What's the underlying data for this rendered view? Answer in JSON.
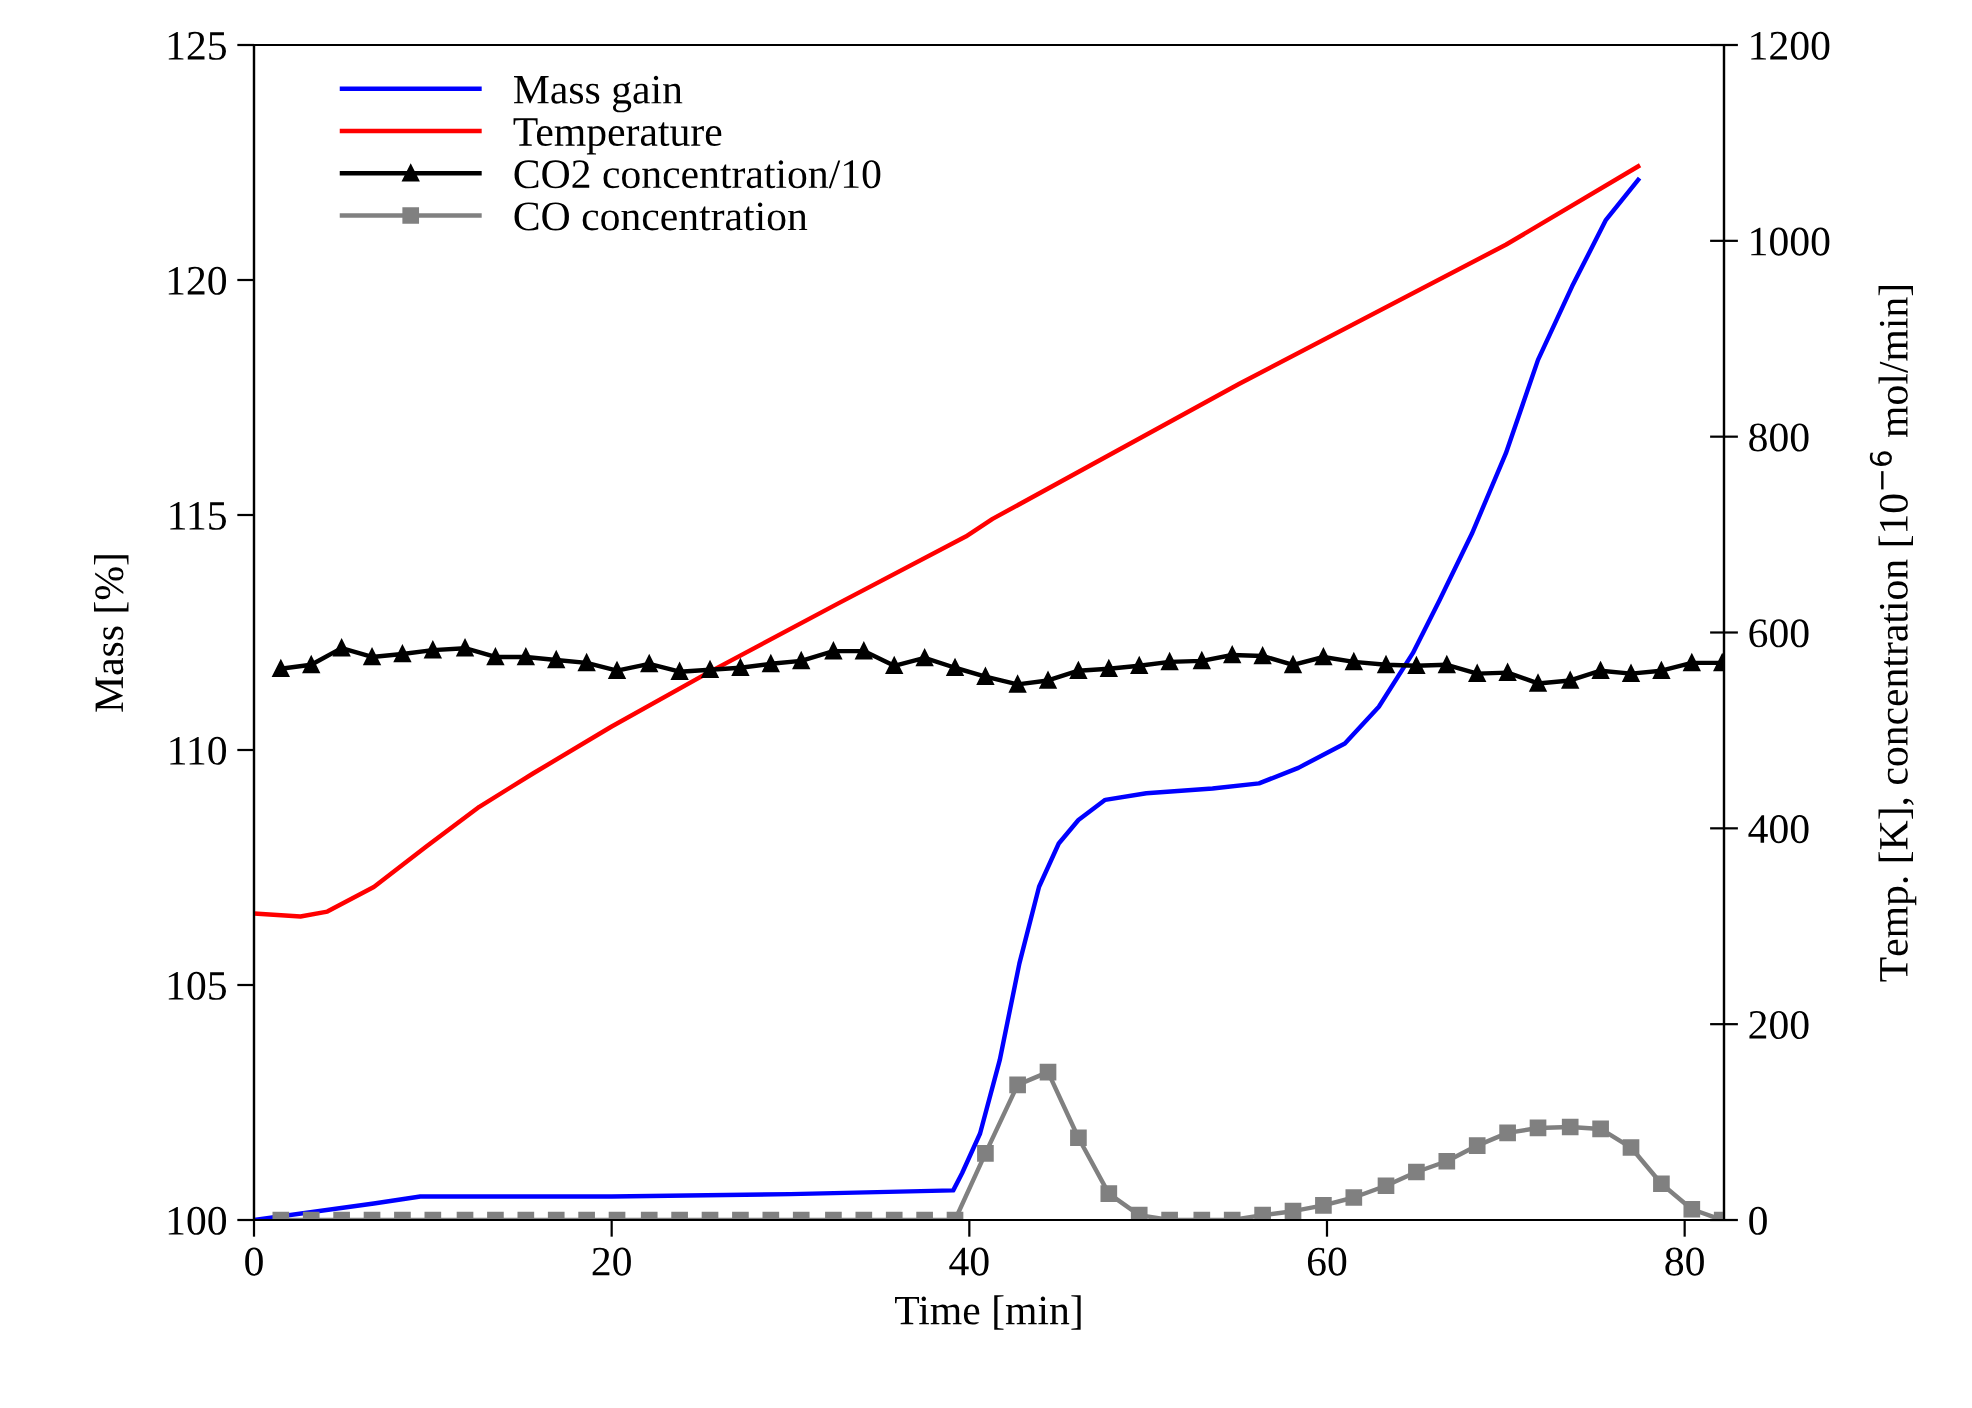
{
  "chart_data": {
    "type": "line",
    "xlabel": "Time [min]",
    "ylabel": "Mass [%]",
    "y2label": "Temp. [K], concentration [10$^{−6}$ mol/min]",
    "xlim": [
      0,
      82.2
    ],
    "xticks": [
      0,
      20,
      40,
      60,
      80
    ],
    "ylim": [
      100,
      125
    ],
    "yticks": [
      100,
      105,
      110,
      115,
      120,
      125
    ],
    "y2lim": [
      0,
      1200
    ],
    "y2ticks": [
      0,
      200,
      400,
      600,
      800,
      1000,
      1200
    ],
    "grid": false,
    "legend": "top left",
    "series": [
      {
        "name": "Mass gain",
        "color": "#0000ff",
        "marker": "none",
        "x": [
          0,
          6.7,
          9.3,
          20,
          30,
          39.1,
          39.6,
          40.6,
          41.7,
          42.8,
          43.9,
          45.0,
          46.1,
          47.6,
          49.9,
          53.6,
          56.2,
          58.4,
          61.0,
          62.9,
          64.8,
          66.3,
          68.1,
          70.0,
          71.8,
          73.7,
          75.6,
          77.4
        ],
        "values": [
          100,
          100.35,
          100.5,
          100.5,
          100.55,
          100.63,
          101.0,
          101.84,
          103.4,
          105.46,
          107.09,
          108.01,
          108.51,
          108.94,
          109.08,
          109.18,
          109.29,
          109.62,
          110.14,
          110.92,
          112.06,
          113.19,
          114.6,
          116.31,
          118.3,
          119.86,
          121.28,
          122.13
        ]
      },
      {
        "name": "Temperature",
        "color": "#ff0000",
        "marker": "none",
        "axis": "y2",
        "x": [
          0,
          2.6,
          4.1,
          6.7,
          9.6,
          12.6,
          15.6,
          20.0,
          25.3,
          32.7,
          39.8,
          41.3,
          55.1,
          70.0,
          77.4
        ],
        "values": [
          313,
          310,
          315,
          340,
          381,
          422,
          456,
          504,
          558,
          630,
          698,
          716,
          854,
          996,
          1076
        ]
      },
      {
        "name": "CO2 concentration/10",
        "color": "#000000",
        "marker": "triangle",
        "axis": "y2",
        "x": [
          1.5,
          3.2,
          4.9,
          6.6,
          8.3,
          10.0,
          11.8,
          13.5,
          15.2,
          16.9,
          18.6,
          20.3,
          22.1,
          23.8,
          25.5,
          27.2,
          28.9,
          30.6,
          32.4,
          34.1,
          35.8,
          37.5,
          39.2,
          40.9,
          42.7,
          44.4,
          46.1,
          47.8,
          49.5,
          51.2,
          53.0,
          54.7,
          56.4,
          58.1,
          59.8,
          61.5,
          63.3,
          65.0,
          66.7,
          68.4,
          70.1,
          71.8,
          73.6,
          75.3,
          77.0,
          78.7,
          80.4,
          82.1
        ],
        "values": [
          563,
          567,
          584,
          575,
          578,
          582,
          584,
          575,
          575,
          572,
          569,
          561,
          568,
          560,
          562,
          564,
          568,
          571,
          581,
          581,
          566,
          574,
          564,
          555,
          547,
          551,
          561,
          563,
          566,
          570,
          571,
          577,
          576,
          567,
          575,
          570,
          567,
          566,
          567,
          558,
          559,
          548,
          551,
          561,
          558,
          561,
          569,
          569
        ]
      },
      {
        "name": "CO concentration",
        "color": "#808080",
        "marker": "square",
        "axis": "y2",
        "x": [
          1.5,
          3.2,
          4.9,
          6.6,
          8.3,
          10.0,
          11.8,
          13.5,
          15.2,
          16.9,
          18.6,
          20.3,
          22.1,
          23.8,
          25.5,
          27.2,
          28.9,
          30.6,
          32.4,
          34.1,
          35.8,
          37.5,
          39.2,
          40.9,
          42.7,
          44.4,
          46.1,
          47.8,
          49.5,
          51.2,
          53.0,
          54.7,
          56.4,
          58.1,
          59.8,
          61.5,
          63.3,
          65.0,
          66.7,
          68.4,
          70.1,
          71.8,
          73.6,
          75.3,
          77.0,
          78.7,
          80.4,
          82.1
        ],
        "values": [
          0,
          0,
          0,
          0,
          0,
          0,
          0,
          0,
          0,
          0,
          0,
          0,
          0,
          0,
          0,
          0,
          0,
          0,
          0,
          0,
          0,
          0,
          0,
          68,
          138,
          151,
          84,
          27,
          5,
          0,
          0,
          0,
          5,
          9,
          15,
          23,
          35,
          49,
          60,
          76,
          89,
          94,
          95,
          93,
          74,
          37,
          11,
          0
        ]
      }
    ]
  }
}
